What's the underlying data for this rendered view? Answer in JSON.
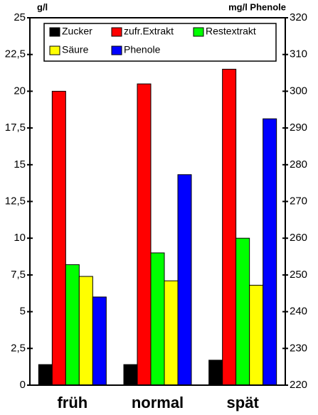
{
  "chart_data": {
    "type": "bar",
    "y_label": "g/l",
    "y2_label": "mg/l Phenole",
    "categories": [
      "früh",
      "normal",
      "spät"
    ],
    "series": [
      {
        "name": "Zucker",
        "color": "#000000",
        "values": [
          1.4,
          1.4,
          1.7
        ]
      },
      {
        "name": "zufr.Extrakt",
        "color": "#ff0000",
        "values": [
          20.0,
          20.5,
          21.5
        ]
      },
      {
        "name": "Restextrakt",
        "color": "#00ff00",
        "values": [
          8.2,
          9.0,
          10.0
        ]
      },
      {
        "name": "Säure",
        "color": "#ffff00",
        "values": [
          7.4,
          7.1,
          6.8
        ]
      },
      {
        "name": "Phenole",
        "color": "#0000ff",
        "values": [
          244,
          277.3,
          292.5
        ],
        "axis": "y2"
      }
    ],
    "ylim": [
      0,
      25
    ],
    "yticks": [
      0,
      {
        "value": 2.5,
        "label": "2,5"
      },
      5,
      {
        "value": 7.5,
        "label": "7,5"
      },
      10,
      {
        "value": 12.5,
        "label": "12,5"
      },
      15,
      {
        "value": 17.5,
        "label": "17,5"
      },
      20,
      {
        "value": 22.5,
        "label": "22,5"
      },
      25
    ],
    "y2lim": [
      220,
      320
    ],
    "y2ticks": [
      220,
      230,
      240,
      250,
      260,
      270,
      280,
      290,
      300,
      310,
      320
    ],
    "grid": false
  }
}
